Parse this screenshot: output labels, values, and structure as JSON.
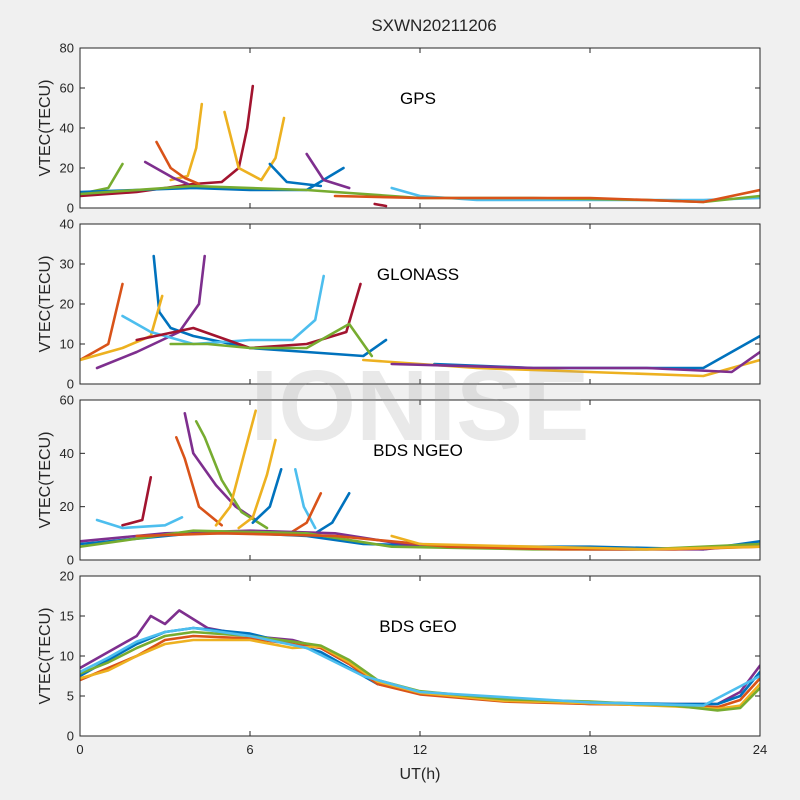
{
  "figure": {
    "title": "SXWN20211206",
    "watermark": "IONISE",
    "xlabel": "UT(h)",
    "xlim": [
      0,
      24
    ],
    "xticks": [
      0,
      6,
      12,
      18,
      24
    ],
    "colors": [
      "#0072BD",
      "#D95319",
      "#EDB120",
      "#7E2F8E",
      "#77AC30",
      "#4DBEEE",
      "#A2142F"
    ]
  },
  "chart_data": [
    {
      "type": "line",
      "label": "GPS",
      "ylabel": "VTEC(TECU)",
      "ylim": [
        0,
        80
      ],
      "yticks": [
        0,
        20,
        40,
        60,
        80
      ],
      "grid": false,
      "series": [
        {
          "color": "#A2142F",
          "x": [
            0,
            2,
            4,
            5,
            5.6,
            5.9,
            6.1
          ],
          "y": [
            6,
            8,
            12,
            13,
            20,
            40,
            61
          ]
        },
        {
          "color": "#EDB120",
          "x": [
            3.2,
            3.8,
            4.1,
            4.3
          ],
          "y": [
            14,
            16,
            30,
            52
          ]
        },
        {
          "color": "#EDB120",
          "x": [
            5.1,
            5.6,
            6.4,
            6.9,
            7.2
          ],
          "y": [
            48,
            20,
            14,
            25,
            45
          ]
        },
        {
          "color": "#D95319",
          "x": [
            2.7,
            3.2,
            3.7,
            4.2
          ],
          "y": [
            33,
            20,
            15,
            12
          ]
        },
        {
          "color": "#7E2F8E",
          "x": [
            2.3,
            2.8,
            3.3,
            3.8
          ],
          "y": [
            23,
            19,
            15,
            12
          ]
        },
        {
          "color": "#77AC30",
          "x": [
            0,
            1,
            1.5
          ],
          "y": [
            7,
            10,
            22
          ]
        },
        {
          "color": "#0072BD",
          "x": [
            0,
            2,
            4,
            6,
            8,
            9.3
          ],
          "y": [
            8,
            9,
            10,
            9,
            9,
            20
          ]
        },
        {
          "color": "#0072BD",
          "x": [
            6.7,
            7.3,
            8.5
          ],
          "y": [
            22,
            13,
            11
          ]
        },
        {
          "color": "#7E2F8E",
          "x": [
            8,
            8.6,
            9.5
          ],
          "y": [
            27,
            14,
            10
          ]
        },
        {
          "color": "#A2142F",
          "x": [
            10.4,
            10.8
          ],
          "y": [
            2,
            1
          ]
        },
        {
          "color": "#4DBEEE",
          "x": [
            11,
            12,
            14,
            16,
            18,
            20,
            22,
            24
          ],
          "y": [
            10,
            6,
            4,
            4,
            4,
            4,
            4,
            5
          ]
        },
        {
          "color": "#77AC30",
          "x": [
            0,
            4,
            8,
            12,
            16,
            20,
            22,
            24
          ],
          "y": [
            7,
            11,
            9,
            5,
            5,
            4,
            3,
            6
          ]
        },
        {
          "color": "#D95319",
          "x": [
            9,
            12,
            18,
            22,
            24
          ],
          "y": [
            6,
            5,
            5,
            3,
            9
          ]
        }
      ]
    },
    {
      "type": "line",
      "label": "GLONASS",
      "ylabel": "VTEC(TECU)",
      "ylim": [
        0,
        40
      ],
      "yticks": [
        0,
        10,
        20,
        30,
        40
      ],
      "grid": false,
      "series": [
        {
          "color": "#D95319",
          "x": [
            0,
            1,
            1.5
          ],
          "y": [
            6,
            10,
            25
          ]
        },
        {
          "color": "#0072BD",
          "x": [
            2.6,
            2.8,
            3.2,
            4,
            6,
            8,
            10,
            10.8
          ],
          "y": [
            32,
            18,
            14,
            12,
            9,
            8,
            7,
            11
          ]
        },
        {
          "color": "#7E2F8E",
          "x": [
            0.6,
            2,
            3.5,
            4.2,
            4.4
          ],
          "y": [
            4,
            8,
            13,
            20,
            32
          ]
        },
        {
          "color": "#EDB120",
          "x": [
            0,
            1.5,
            2.5,
            2.9
          ],
          "y": [
            6,
            9,
            12,
            22
          ]
        },
        {
          "color": "#4DBEEE",
          "x": [
            1.5,
            2.5,
            4,
            6,
            7.5,
            8.3,
            8.6
          ],
          "y": [
            17,
            13,
            10,
            11,
            11,
            16,
            27
          ]
        },
        {
          "color": "#A2142F",
          "x": [
            2,
            4,
            6,
            8,
            9.4,
            9.9
          ],
          "y": [
            11,
            14,
            9,
            10,
            13,
            25
          ]
        },
        {
          "color": "#77AC30",
          "x": [
            3.2,
            4.5,
            6,
            8,
            9.5,
            10.3
          ],
          "y": [
            10,
            10,
            9,
            9,
            15,
            7
          ]
        },
        {
          "color": "#0072BD",
          "x": [
            12.5,
            16,
            20,
            22,
            24
          ],
          "y": [
            5,
            4,
            4,
            4,
            12
          ]
        },
        {
          "color": "#EDB120",
          "x": [
            10,
            14,
            18,
            22,
            24
          ],
          "y": [
            6,
            4,
            3,
            2,
            6
          ]
        },
        {
          "color": "#7E2F8E",
          "x": [
            11,
            16,
            20,
            23,
            24
          ],
          "y": [
            5,
            4,
            4,
            3,
            8
          ]
        }
      ]
    },
    {
      "type": "line",
      "label": "BDS NGEO",
      "ylabel": "VTEC(TECU)",
      "ylim": [
        0,
        60
      ],
      "yticks": [
        0,
        20,
        40,
        60
      ],
      "grid": false,
      "series": [
        {
          "color": "#A2142F",
          "x": [
            1.5,
            2.2,
            2.5
          ],
          "y": [
            13,
            15,
            31
          ]
        },
        {
          "color": "#D95319",
          "x": [
            3.4,
            3.7,
            4.2,
            5
          ],
          "y": [
            46,
            38,
            20,
            13
          ]
        },
        {
          "color": "#7E2F8E",
          "x": [
            3.7,
            4,
            4.8,
            5.5,
            6.2
          ],
          "y": [
            55,
            40,
            28,
            20,
            15
          ]
        },
        {
          "color": "#77AC30",
          "x": [
            4.1,
            4.4,
            5,
            5.7,
            6.6
          ],
          "y": [
            52,
            46,
            30,
            18,
            12
          ]
        },
        {
          "color": "#EDB120",
          "x": [
            4.8,
            5.3,
            5.8,
            6.2
          ],
          "y": [
            13,
            20,
            40,
            56
          ]
        },
        {
          "color": "#EDB120",
          "x": [
            5.6,
            6.1,
            6.6,
            6.9
          ],
          "y": [
            12,
            16,
            32,
            45
          ]
        },
        {
          "color": "#0072BD",
          "x": [
            6.1,
            6.7,
            7.1
          ],
          "y": [
            14,
            20,
            34
          ]
        },
        {
          "color": "#4DBEEE",
          "x": [
            7.6,
            7.9,
            8.3
          ],
          "y": [
            34,
            20,
            12
          ]
        },
        {
          "color": "#D95319",
          "x": [
            7.4,
            8,
            8.5
          ],
          "y": [
            10,
            14,
            25
          ]
        },
        {
          "color": "#0072BD",
          "x": [
            8.3,
            8.9,
            9.5
          ],
          "y": [
            10,
            14,
            25
          ]
        },
        {
          "color": "#4DBEEE",
          "x": [
            0.6,
            1.5,
            3,
            3.6
          ],
          "y": [
            15,
            12,
            13,
            16
          ]
        },
        {
          "color": "#0072BD",
          "x": [
            0,
            2,
            4,
            6,
            8,
            10,
            14,
            18,
            22,
            24
          ],
          "y": [
            6,
            8,
            10,
            10,
            9,
            6,
            5,
            5,
            4,
            7
          ]
        },
        {
          "color": "#7E2F8E",
          "x": [
            0,
            3,
            6,
            9,
            12,
            18,
            22,
            24
          ],
          "y": [
            7,
            10,
            11,
            10,
            5,
            4,
            4,
            6
          ]
        },
        {
          "color": "#77AC30",
          "x": [
            0,
            4,
            8,
            11,
            16,
            20,
            24
          ],
          "y": [
            5,
            11,
            10,
            5,
            4,
            4,
            6
          ]
        },
        {
          "color": "#D95319",
          "x": [
            2,
            5,
            9,
            13,
            17,
            21,
            24
          ],
          "y": [
            9,
            10,
            9,
            5,
            4,
            4,
            5
          ]
        },
        {
          "color": "#EDB120",
          "x": [
            11,
            12,
            16,
            20,
            24
          ],
          "y": [
            9,
            6,
            5,
            4,
            5
          ]
        }
      ]
    },
    {
      "type": "line",
      "label": "BDS GEO",
      "ylabel": "VTEC(TECU)",
      "ylim": [
        0,
        20
      ],
      "yticks": [
        0,
        5,
        10,
        15,
        20
      ],
      "grid": false,
      "series": [
        {
          "color": "#7E2F8E",
          "x": [
            0,
            1,
            2,
            2.5,
            3,
            3.5,
            4.5,
            6,
            7.5,
            8.5,
            9.5,
            10.5,
            12,
            15,
            18,
            21,
            22.5,
            23.3,
            24
          ],
          "y": [
            8.5,
            10.5,
            12.5,
            15,
            14,
            15.7,
            13.5,
            12.5,
            12,
            11,
            9,
            6.5,
            5.5,
            4.5,
            4,
            4,
            4,
            5.5,
            8.8
          ]
        },
        {
          "color": "#0072BD",
          "x": [
            0,
            1,
            2,
            3,
            4,
            6,
            7.5,
            8.5,
            9.5,
            10.5,
            12,
            15,
            18,
            21,
            22.5,
            23.3,
            24
          ],
          "y": [
            7.5,
            9.5,
            11.5,
            13,
            13.5,
            12.8,
            11.5,
            10.5,
            8.5,
            6.5,
            5.5,
            4.5,
            4.2,
            4,
            4,
            5,
            8
          ]
        },
        {
          "color": "#D95319",
          "x": [
            0,
            1,
            2,
            3,
            4,
            6,
            7.5,
            8.5,
            9.5,
            10.5,
            12,
            15,
            18,
            21,
            22.5,
            23.3,
            24
          ],
          "y": [
            7,
            8.5,
            10,
            12,
            12.5,
            12.2,
            11.5,
            11,
            9,
            6.5,
            5.2,
            4.3,
            4,
            3.8,
            3.6,
            4.5,
            7.2
          ]
        },
        {
          "color": "#EDB120",
          "x": [
            0,
            1,
            2,
            3,
            4,
            6,
            7.5,
            8.5,
            9.5,
            10.5,
            12,
            15,
            18,
            21,
            22.5,
            23.3,
            24
          ],
          "y": [
            7.2,
            8.2,
            10,
            11.5,
            12,
            12,
            11,
            11.2,
            9.2,
            6.8,
            5.4,
            4.4,
            4.1,
            3.7,
            3.4,
            3.8,
            6.5
          ]
        },
        {
          "color": "#77AC30",
          "x": [
            0,
            1,
            2,
            3,
            4,
            6,
            7.5,
            8.5,
            9.5,
            10.5,
            12,
            15,
            18,
            21,
            22.5,
            23.3,
            24
          ],
          "y": [
            7.8,
            9.2,
            11,
            12.5,
            13,
            12.5,
            11.8,
            11.3,
            9.5,
            7,
            5.6,
            4.6,
            4.3,
            3.8,
            3.2,
            3.5,
            6
          ]
        },
        {
          "color": "#4DBEEE",
          "x": [
            0,
            1,
            2,
            3,
            4,
            6,
            8,
            10,
            12,
            18,
            22,
            24
          ],
          "y": [
            8,
            9.8,
            11.8,
            13,
            13.5,
            12.5,
            11,
            7.5,
            5.5,
            4.2,
            3.8,
            7.5
          ]
        }
      ]
    }
  ]
}
